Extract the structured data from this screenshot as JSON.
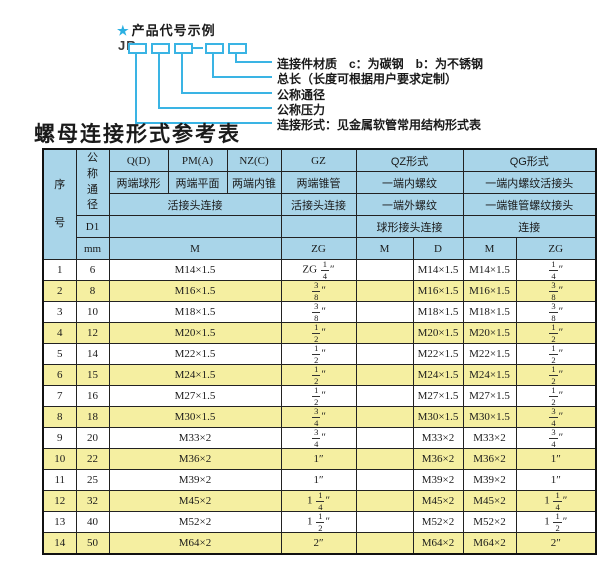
{
  "colors": {
    "accent_cyan": "#3ab4e4",
    "header_blue": "#a9d5e9",
    "stripe_yellow": "#f5efa1"
  },
  "diagram": {
    "star": "★",
    "heading": "产品代号示例",
    "code_prefix": "JR",
    "labels": [
      "连接件材质　c：为碳钢　b：为不锈钢",
      "总长（长度可根据用户要求定制）",
      "公称通径",
      "公称压力",
      "连接形式：见金属软管常用结构形式表"
    ]
  },
  "title": "螺母连接形式参考表",
  "table": {
    "header": {
      "seq": "序号",
      "dn": "公称通径",
      "q": "Q(D)",
      "pm": "PM(A)",
      "nz": "NZ(C)",
      "gz": "GZ",
      "qz": "QZ形式",
      "qg": "QG形式",
      "q2": "两端球形",
      "pm2": "两端平面",
      "nz2": "两端内锥",
      "gz2": "两端锥管",
      "qz2": "一端内螺纹",
      "qg2": "一端内螺纹活接头",
      "live3": "活接头连接",
      "gz3": "活接头连接",
      "qz3": "一端外螺纹",
      "qg3": "一端锥管螺纹接头",
      "d1": "D1",
      "qz4": "球形接头连接",
      "qg4": "连接",
      "mm": "mm",
      "m": "M",
      "zg": "ZG",
      "qz_m": "M",
      "qz_d": "D",
      "qg_m": "M",
      "qg_zg": "ZG"
    },
    "rows": [
      {
        "no": "1",
        "dn": "6",
        "m": "M14×1.5",
        "gz": "ZG 1/4″",
        "qz_m": "",
        "qz_d": "M14×1.5",
        "qg_m": "M14×1.5",
        "qg_zg": "1/4″"
      },
      {
        "no": "2",
        "dn": "8",
        "m": "M16×1.5",
        "gz": "3/8″",
        "qz_m": "",
        "qz_d": "M16×1.5",
        "qg_m": "M16×1.5",
        "qg_zg": "3/8″"
      },
      {
        "no": "3",
        "dn": "10",
        "m": "M18×1.5",
        "gz": "3/8″",
        "qz_m": "",
        "qz_d": "M18×1.5",
        "qg_m": "M18×1.5",
        "qg_zg": "3/8″"
      },
      {
        "no": "4",
        "dn": "12",
        "m": "M20×1.5",
        "gz": "1/2″",
        "qz_m": "",
        "qz_d": "M20×1.5",
        "qg_m": "M20×1.5",
        "qg_zg": "1/2″"
      },
      {
        "no": "5",
        "dn": "14",
        "m": "M22×1.5",
        "gz": "1/2″",
        "qz_m": "",
        "qz_d": "M22×1.5",
        "qg_m": "M22×1.5",
        "qg_zg": "1/2″"
      },
      {
        "no": "6",
        "dn": "15",
        "m": "M24×1.5",
        "gz": "1/2″",
        "qz_m": "",
        "qz_d": "M24×1.5",
        "qg_m": "M24×1.5",
        "qg_zg": "1/2″"
      },
      {
        "no": "7",
        "dn": "16",
        "m": "M27×1.5",
        "gz": "1/2″",
        "qz_m": "",
        "qz_d": "M27×1.5",
        "qg_m": "M27×1.5",
        "qg_zg": "1/2″"
      },
      {
        "no": "8",
        "dn": "18",
        "m": "M30×1.5",
        "gz": "3/4″",
        "qz_m": "",
        "qz_d": "M30×1.5",
        "qg_m": "M30×1.5",
        "qg_zg": "3/4″"
      },
      {
        "no": "9",
        "dn": "20",
        "m": "M33×2",
        "gz": "3/4″",
        "qz_m": "",
        "qz_d": "M33×2",
        "qg_m": "M33×2",
        "qg_zg": "3/4″"
      },
      {
        "no": "10",
        "dn": "22",
        "m": "M36×2",
        "gz": "1″",
        "qz_m": "",
        "qz_d": "M36×2",
        "qg_m": "M36×2",
        "qg_zg": "1″"
      },
      {
        "no": "11",
        "dn": "25",
        "m": "M39×2",
        "gz": "1″",
        "qz_m": "",
        "qz_d": "M39×2",
        "qg_m": "M39×2",
        "qg_zg": "1″"
      },
      {
        "no": "12",
        "dn": "32",
        "m": "M45×2",
        "gz": "1 1/4″",
        "qz_m": "",
        "qz_d": "M45×2",
        "qg_m": "M45×2",
        "qg_zg": "1 1/4″"
      },
      {
        "no": "13",
        "dn": "40",
        "m": "M52×2",
        "gz": "1 1/2″",
        "qz_m": "",
        "qz_d": "M52×2",
        "qg_m": "M52×2",
        "qg_zg": "1 1/2″"
      },
      {
        "no": "14",
        "dn": "50",
        "m": "M64×2",
        "gz": "2″",
        "qz_m": "",
        "qz_d": "M64×2",
        "qg_m": "M64×2",
        "qg_zg": "2″"
      }
    ]
  }
}
